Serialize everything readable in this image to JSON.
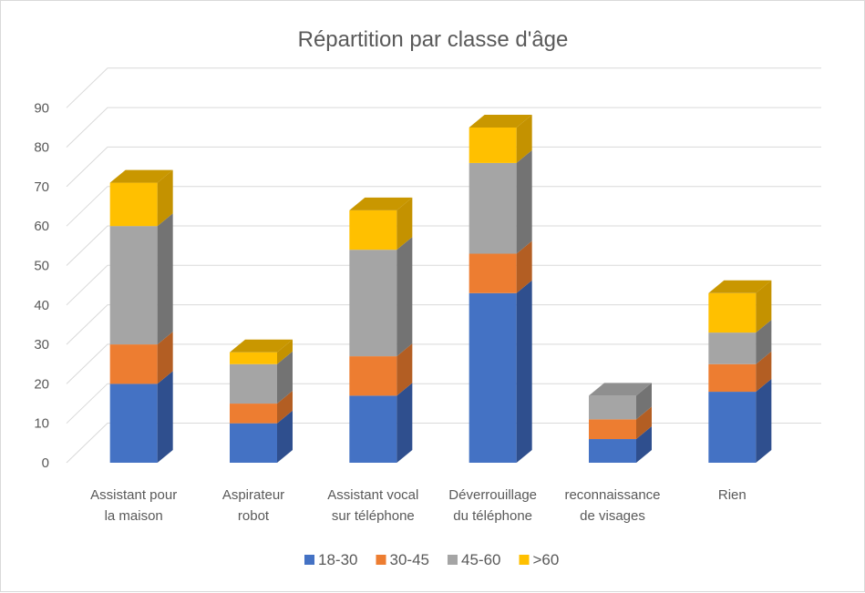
{
  "chart_data": {
    "type": "bar",
    "stacked": true,
    "three_d": true,
    "title": "Répartition par classe d'âge",
    "xlabel": "",
    "ylabel": "",
    "ylim": [
      0,
      90
    ],
    "yticks": [
      "0",
      "10",
      "20",
      "30",
      "40",
      "50",
      "60",
      "70",
      "80",
      "90"
    ],
    "grid": true,
    "legend_position": "bottom",
    "categories": [
      [
        "Assistant pour",
        "la maison"
      ],
      [
        "Aspirateur",
        "robot"
      ],
      [
        "Assistant vocal",
        "sur téléphone"
      ],
      [
        "Déverrouillage",
        "du téléphone"
      ],
      [
        "reconnaissance",
        "de visages"
      ],
      [
        "Rien"
      ]
    ],
    "series": [
      {
        "name": "18-30",
        "color": "#4472C4",
        "side": "#2F4F8E",
        "top": "#3A64AE",
        "values": [
          20,
          10,
          17,
          43,
          6,
          18
        ]
      },
      {
        "name": "30-45",
        "color": "#ED7D31",
        "side": "#B35E23",
        "top": "#D46F2B",
        "values": [
          10,
          5,
          10,
          10,
          5,
          7
        ]
      },
      {
        "name": "45-60",
        "color": "#A5A5A5",
        "side": "#737373",
        "top": "#8F8F8F",
        "values": [
          30,
          10,
          27,
          23,
          6,
          8
        ]
      },
      {
        "name": ">60",
        "color": "#FFC000",
        "side": "#C49200",
        "top": "#C99700",
        "values": [
          11,
          3,
          10,
          9,
          0,
          10
        ]
      }
    ]
  }
}
